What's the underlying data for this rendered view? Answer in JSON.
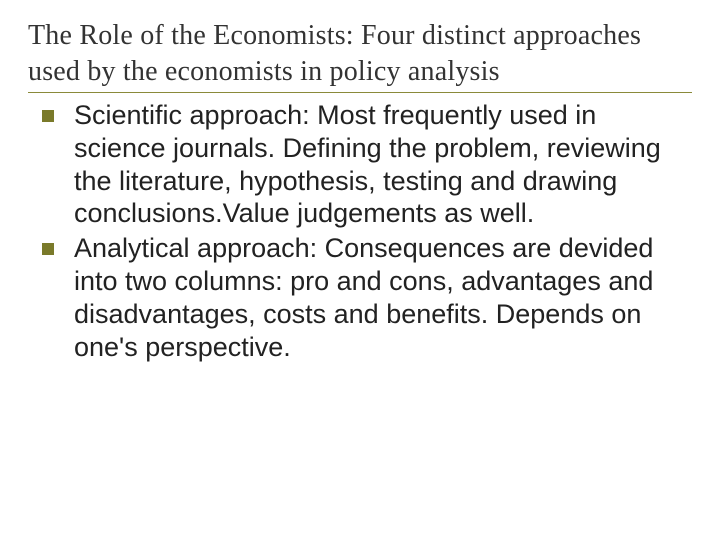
{
  "colors": {
    "title_text": "#333333",
    "title_underline": "#8a8a3a",
    "bullet_marker": "#7a7a2a",
    "body_text": "#222222",
    "background": "#ffffff"
  },
  "typography": {
    "title_font": "Times New Roman",
    "title_fontsize_pt": 21,
    "body_font": "Arial",
    "body_fontsize_pt": 20
  },
  "title": "The Role of the Economists: Four distinct approaches used by the economists in policy analysis",
  "bullets": [
    {
      "text": "Scientific approach: Most frequently used in science journals. Defining the problem, reviewing the literature, hypothesis, testing and drawing conclusions.Value judgements as well."
    },
    {
      "text": "Analytical approach: Consequences are devided into two columns: pro and cons, advantages and disadvantages, costs and benefits. Depends on one's perspective."
    }
  ]
}
